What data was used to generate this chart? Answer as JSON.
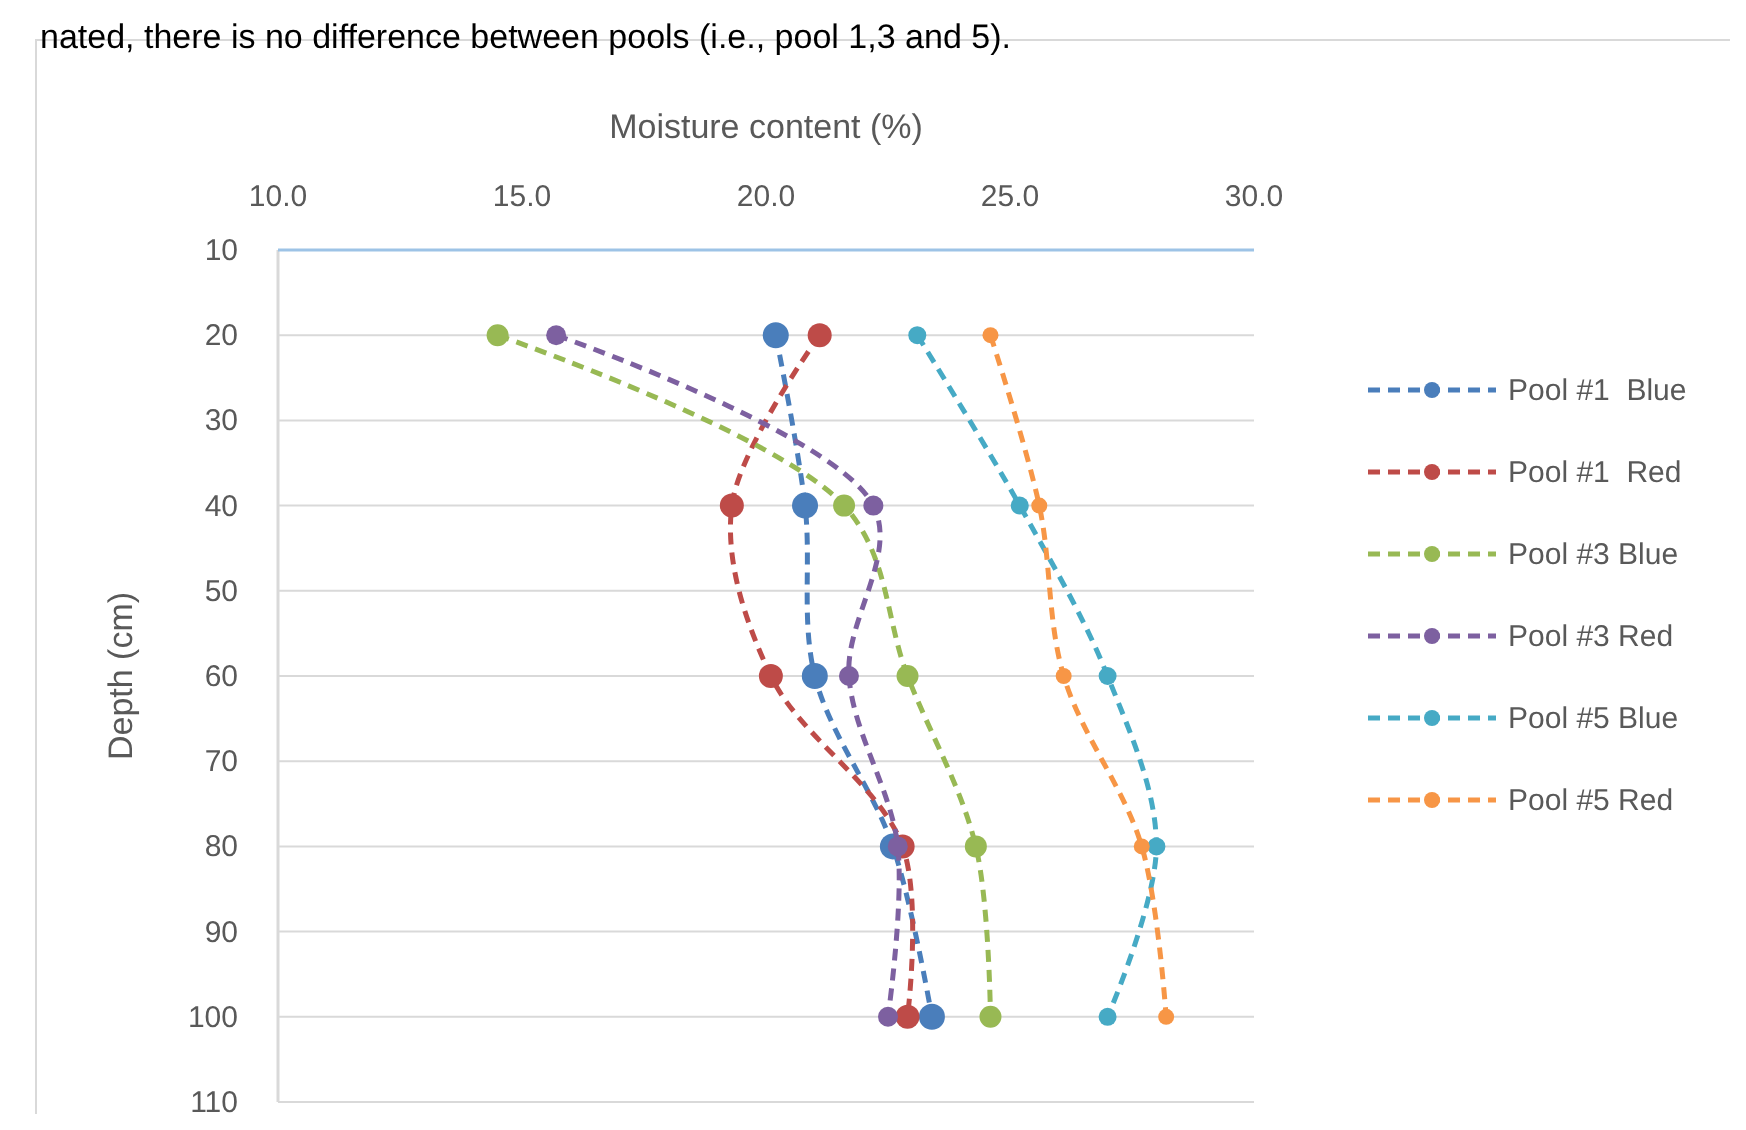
{
  "chart_data": {
    "type": "line",
    "orientation": "horizontal",
    "xlabel": "Moisture content (%)",
    "ylabel": "Depth (cm)",
    "annotations": [
      "nated, there is no difference between pools (i.e., pool 1,3 and 5)."
    ],
    "x": [
      20,
      40,
      60,
      80,
      100
    ],
    "xlim": [
      10,
      30
    ],
    "xticks": [
      {
        "value": 10,
        "label": "10.0"
      },
      {
        "value": 15,
        "label": "15.0"
      },
      {
        "value": 20,
        "label": "20.0"
      },
      {
        "value": 25,
        "label": "25.0"
      },
      {
        "value": 30,
        "label": "30.0"
      }
    ],
    "ylim": [
      110,
      10
    ],
    "yticks": [
      10,
      20,
      30,
      40,
      50,
      60,
      70,
      80,
      90,
      100,
      110
    ],
    "grid": "y",
    "legend": "right",
    "marker": "circle",
    "line_style": "dashed",
    "series": [
      {
        "name": "Pool #1  Blue",
        "color": "#4a7ebb",
        "values": [
          20.2,
          20.8,
          21.0,
          22.6,
          23.4
        ]
      },
      {
        "name": "Pool #1  Red",
        "color": "#be4b48",
        "values": [
          21.1,
          19.3,
          20.1,
          22.8,
          22.9
        ]
      },
      {
        "name": "Pool #3 Blue",
        "color": "#98b954",
        "values": [
          14.5,
          21.6,
          22.9,
          24.3,
          24.6
        ]
      },
      {
        "name": "Pool #3 Red",
        "color": "#7d60a0",
        "values": [
          15.7,
          22.2,
          21.7,
          22.7,
          22.5
        ]
      },
      {
        "name": "Pool #5 Blue",
        "color": "#46aac5",
        "values": [
          23.1,
          25.2,
          27.0,
          28.0,
          27.0
        ]
      },
      {
        "name": "Pool #5 Red",
        "color": "#f79646",
        "values": [
          24.6,
          25.6,
          26.1,
          27.7,
          28.2
        ]
      }
    ]
  }
}
